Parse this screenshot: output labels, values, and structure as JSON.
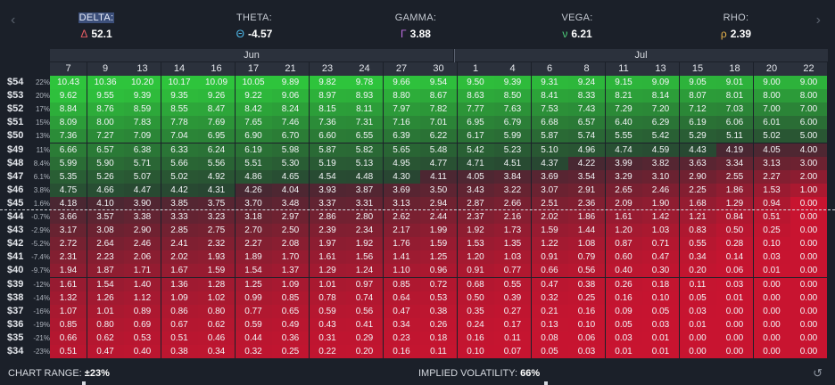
{
  "greeks": [
    {
      "name": "DELTA:",
      "symbol": "Δ",
      "value": "52.1",
      "color": "#e45c63",
      "selected": true
    },
    {
      "name": "THETA:",
      "symbol": "Θ",
      "value": "-4.57",
      "color": "#4fb8e8",
      "selected": false
    },
    {
      "name": "GAMMA:",
      "symbol": "Γ",
      "value": "3.88",
      "color": "#c06fe3",
      "selected": false
    },
    {
      "name": "VEGA:",
      "symbol": "ν",
      "value": "6.21",
      "color": "#4ed07a",
      "selected": false
    },
    {
      "name": "RHO:",
      "symbol": "ρ",
      "value": "2.39",
      "color": "#e8b34b",
      "selected": false
    }
  ],
  "months": [
    {
      "label": "Jun"
    },
    {
      "label": "Jul"
    }
  ],
  "dates": [
    "7",
    "9",
    "13",
    "14",
    "16",
    "17",
    "21",
    "23",
    "24",
    "27",
    "30",
    "1",
    "4",
    "6",
    "8",
    "11",
    "13",
    "15",
    "18",
    "20",
    "22"
  ],
  "rows": [
    {
      "strike": "$54",
      "pct": "22%",
      "values": [
        "10.43",
        "10.36",
        "10.20",
        "10.17",
        "10.09",
        "10.05",
        "9.89",
        "9.82",
        "9.78",
        "9.66",
        "9.54",
        "9.50",
        "9.39",
        "9.31",
        "9.24",
        "9.15",
        "9.09",
        "9.05",
        "9.01",
        "9.00",
        "9.00"
      ]
    },
    {
      "strike": "$53",
      "pct": "20%",
      "values": [
        "9.62",
        "9.55",
        "9.39",
        "9.35",
        "9.26",
        "9.22",
        "9.06",
        "8.97",
        "8.93",
        "8.80",
        "8.67",
        "8.63",
        "8.50",
        "8.41",
        "8.33",
        "8.21",
        "8.14",
        "8.07",
        "8.01",
        "8.00",
        "8.00"
      ]
    },
    {
      "strike": "$52",
      "pct": "17%",
      "values": [
        "8.84",
        "8.76",
        "8.59",
        "8.55",
        "8.47",
        "8.42",
        "8.24",
        "8.15",
        "8.11",
        "7.97",
        "7.82",
        "7.77",
        "7.63",
        "7.53",
        "7.43",
        "7.29",
        "7.20",
        "7.12",
        "7.03",
        "7.00",
        "7.00"
      ]
    },
    {
      "strike": "$51",
      "pct": "15%",
      "values": [
        "8.09",
        "8.00",
        "7.83",
        "7.78",
        "7.69",
        "7.65",
        "7.46",
        "7.36",
        "7.31",
        "7.16",
        "7.01",
        "6.95",
        "6.79",
        "6.68",
        "6.57",
        "6.40",
        "6.29",
        "6.19",
        "6.06",
        "6.01",
        "6.00"
      ]
    },
    {
      "strike": "$50",
      "pct": "13%",
      "values": [
        "7.36",
        "7.27",
        "7.09",
        "7.04",
        "6.95",
        "6.90",
        "6.70",
        "6.60",
        "6.55",
        "6.39",
        "6.22",
        "6.17",
        "5.99",
        "5.87",
        "5.74",
        "5.55",
        "5.42",
        "5.29",
        "5.11",
        "5.02",
        "5.00"
      ]
    },
    {
      "strike": "$49",
      "pct": "11%",
      "values": [
        "6.66",
        "6.57",
        "6.38",
        "6.33",
        "6.24",
        "6.19",
        "5.98",
        "5.87",
        "5.82",
        "5.65",
        "5.48",
        "5.42",
        "5.23",
        "5.10",
        "4.96",
        "4.74",
        "4.59",
        "4.43",
        "4.19",
        "4.05",
        "4.00"
      ]
    },
    {
      "strike": "$48",
      "pct": "8.4%",
      "values": [
        "5.99",
        "5.90",
        "5.71",
        "5.66",
        "5.56",
        "5.51",
        "5.30",
        "5.19",
        "5.13",
        "4.95",
        "4.77",
        "4.71",
        "4.51",
        "4.37",
        "4.22",
        "3.99",
        "3.82",
        "3.63",
        "3.34",
        "3.13",
        "3.00"
      ]
    },
    {
      "strike": "$47",
      "pct": "6.1%",
      "values": [
        "5.35",
        "5.26",
        "5.07",
        "5.02",
        "4.92",
        "4.86",
        "4.65",
        "4.54",
        "4.48",
        "4.30",
        "4.11",
        "4.05",
        "3.84",
        "3.69",
        "3.54",
        "3.29",
        "3.10",
        "2.90",
        "2.55",
        "2.27",
        "2.00"
      ]
    },
    {
      "strike": "$46",
      "pct": "3.8%",
      "values": [
        "4.75",
        "4.66",
        "4.47",
        "4.42",
        "4.31",
        "4.26",
        "4.04",
        "3.93",
        "3.87",
        "3.69",
        "3.50",
        "3.43",
        "3.22",
        "3.07",
        "2.91",
        "2.65",
        "2.46",
        "2.25",
        "1.86",
        "1.53",
        "1.00"
      ]
    },
    {
      "strike": "$45",
      "pct": "1.6%",
      "values": [
        "4.18",
        "4.10",
        "3.90",
        "3.85",
        "3.75",
        "3.70",
        "3.48",
        "3.37",
        "3.31",
        "3.13",
        "2.94",
        "2.87",
        "2.66",
        "2.51",
        "2.36",
        "2.09",
        "1.90",
        "1.68",
        "1.29",
        "0.94",
        "0.00"
      ]
    },
    {
      "strike": "$44",
      "pct": "-0.7%",
      "values": [
        "3.66",
        "3.57",
        "3.38",
        "3.33",
        "3.23",
        "3.18",
        "2.97",
        "2.86",
        "2.80",
        "2.62",
        "2.44",
        "2.37",
        "2.16",
        "2.02",
        "1.86",
        "1.61",
        "1.42",
        "1.21",
        "0.84",
        "0.51",
        "0.00"
      ]
    },
    {
      "strike": "$43",
      "pct": "-2.9%",
      "values": [
        "3.17",
        "3.08",
        "2.90",
        "2.85",
        "2.75",
        "2.70",
        "2.50",
        "2.39",
        "2.34",
        "2.17",
        "1.99",
        "1.92",
        "1.73",
        "1.59",
        "1.44",
        "1.20",
        "1.03",
        "0.83",
        "0.50",
        "0.25",
        "0.00"
      ]
    },
    {
      "strike": "$42",
      "pct": "-5.2%",
      "values": [
        "2.72",
        "2.64",
        "2.46",
        "2.41",
        "2.32",
        "2.27",
        "2.08",
        "1.97",
        "1.92",
        "1.76",
        "1.59",
        "1.53",
        "1.35",
        "1.22",
        "1.08",
        "0.87",
        "0.71",
        "0.55",
        "0.28",
        "0.10",
        "0.00"
      ]
    },
    {
      "strike": "$41",
      "pct": "-7.4%",
      "values": [
        "2.31",
        "2.23",
        "2.06",
        "2.02",
        "1.93",
        "1.89",
        "1.70",
        "1.61",
        "1.56",
        "1.41",
        "1.25",
        "1.20",
        "1.03",
        "0.91",
        "0.79",
        "0.60",
        "0.47",
        "0.34",
        "0.14",
        "0.03",
        "0.00"
      ]
    },
    {
      "strike": "$40",
      "pct": "-9.7%",
      "values": [
        "1.94",
        "1.87",
        "1.71",
        "1.67",
        "1.59",
        "1.54",
        "1.37",
        "1.29",
        "1.24",
        "1.10",
        "0.96",
        "0.91",
        "0.77",
        "0.66",
        "0.56",
        "0.40",
        "0.30",
        "0.20",
        "0.06",
        "0.01",
        "0.00"
      ]
    },
    {
      "strike": "$39",
      "pct": "-12%",
      "values": [
        "1.61",
        "1.54",
        "1.40",
        "1.36",
        "1.28",
        "1.25",
        "1.09",
        "1.01",
        "0.97",
        "0.85",
        "0.72",
        "0.68",
        "0.55",
        "0.47",
        "0.38",
        "0.26",
        "0.18",
        "0.11",
        "0.03",
        "0.00",
        "0.00"
      ]
    },
    {
      "strike": "$38",
      "pct": "-14%",
      "values": [
        "1.32",
        "1.26",
        "1.12",
        "1.09",
        "1.02",
        "0.99",
        "0.85",
        "0.78",
        "0.74",
        "0.64",
        "0.53",
        "0.50",
        "0.39",
        "0.32",
        "0.25",
        "0.16",
        "0.10",
        "0.05",
        "0.01",
        "0.00",
        "0.00"
      ]
    },
    {
      "strike": "$37",
      "pct": "-16%",
      "values": [
        "1.07",
        "1.01",
        "0.89",
        "0.86",
        "0.80",
        "0.77",
        "0.65",
        "0.59",
        "0.56",
        "0.47",
        "0.38",
        "0.35",
        "0.27",
        "0.21",
        "0.16",
        "0.09",
        "0.05",
        "0.03",
        "0.00",
        "0.00",
        "0.00"
      ]
    },
    {
      "strike": "$36",
      "pct": "-19%",
      "values": [
        "0.85",
        "0.80",
        "0.69",
        "0.67",
        "0.62",
        "0.59",
        "0.49",
        "0.43",
        "0.41",
        "0.34",
        "0.26",
        "0.24",
        "0.17",
        "0.13",
        "0.10",
        "0.05",
        "0.03",
        "0.01",
        "0.00",
        "0.00",
        "0.00"
      ]
    },
    {
      "strike": "$35",
      "pct": "-21%",
      "values": [
        "0.66",
        "0.62",
        "0.53",
        "0.51",
        "0.46",
        "0.44",
        "0.36",
        "0.31",
        "0.29",
        "0.23",
        "0.18",
        "0.16",
        "0.11",
        "0.08",
        "0.06",
        "0.03",
        "0.01",
        "0.00",
        "0.00",
        "0.00",
        "0.00"
      ]
    },
    {
      "strike": "$34",
      "pct": "-23%",
      "values": [
        "0.51",
        "0.47",
        "0.40",
        "0.38",
        "0.34",
        "0.32",
        "0.25",
        "0.22",
        "0.20",
        "0.16",
        "0.11",
        "0.10",
        "0.07",
        "0.05",
        "0.03",
        "0.01",
        "0.01",
        "0.00",
        "0.00",
        "0.00",
        "0.00"
      ]
    }
  ],
  "footer": {
    "chart_range_label": "CHART RANGE:",
    "chart_range_value": "±23%",
    "iv_label": "IMPLIED VOLATILITY:",
    "iv_value": "66%"
  },
  "icons": {
    "left": "chevron-left-icon",
    "right": "chevron-right-icon",
    "reset": "refresh-icon"
  },
  "colors": {
    "background": "#1b2029",
    "profit": "#2ec43c",
    "loss": "#c81730",
    "neutral": "#3a2a2f"
  }
}
